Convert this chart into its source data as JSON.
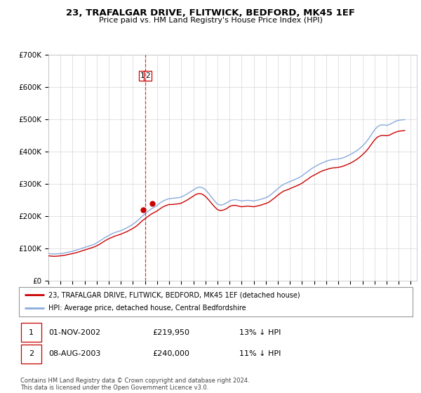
{
  "title": "23, TRAFALGAR DRIVE, FLITWICK, BEDFORD, MK45 1EF",
  "subtitle": "Price paid vs. HM Land Registry's House Price Index (HPI)",
  "legend_line1": "23, TRAFALGAR DRIVE, FLITWICK, BEDFORD, MK45 1EF (detached house)",
  "legend_line2": "HPI: Average price, detached house, Central Bedfordshire",
  "footnote": "Contains HM Land Registry data © Crown copyright and database right 2024.\nThis data is licensed under the Open Government Licence v3.0.",
  "sale1_date": "01-NOV-2002",
  "sale1_price": "£219,950",
  "sale1_hpi": "13% ↓ HPI",
  "sale2_date": "08-AUG-2003",
  "sale2_price": "£240,000",
  "sale2_hpi": "11% ↓ HPI",
  "sale1_year": 2002.83,
  "sale1_value": 219950,
  "sale2_year": 2003.58,
  "sale2_value": 240000,
  "vline_x": 2003.0,
  "property_line_color": "#cc0000",
  "hpi_line_color": "#88aadd",
  "vline_color": "#cc0000",
  "ylim": [
    0,
    700000
  ],
  "xlim_start": 1995,
  "xlim_end": 2025.5,
  "yticks": [
    0,
    100000,
    200000,
    300000,
    400000,
    500000,
    600000,
    700000
  ],
  "xticks": [
    1995,
    1996,
    1997,
    1998,
    1999,
    2000,
    2001,
    2002,
    2003,
    2004,
    2005,
    2006,
    2007,
    2008,
    2009,
    2010,
    2011,
    2012,
    2013,
    2014,
    2015,
    2016,
    2017,
    2018,
    2019,
    2020,
    2021,
    2022,
    2023,
    2024,
    2025
  ],
  "hpi_data_years": [
    1995,
    1995.25,
    1995.5,
    1995.75,
    1996,
    1996.25,
    1996.5,
    1996.75,
    1997,
    1997.25,
    1997.5,
    1997.75,
    1998,
    1998.25,
    1998.5,
    1998.75,
    1999,
    1999.25,
    1999.5,
    1999.75,
    2000,
    2000.25,
    2000.5,
    2000.75,
    2001,
    2001.25,
    2001.5,
    2001.75,
    2002,
    2002.25,
    2002.5,
    2002.75,
    2003,
    2003.25,
    2003.5,
    2003.75,
    2004,
    2004.25,
    2004.5,
    2004.75,
    2005,
    2005.25,
    2005.5,
    2005.75,
    2006,
    2006.25,
    2006.5,
    2006.75,
    2007,
    2007.25,
    2007.5,
    2007.75,
    2008,
    2008.25,
    2008.5,
    2008.75,
    2009,
    2009.25,
    2009.5,
    2009.75,
    2010,
    2010.25,
    2010.5,
    2010.75,
    2011,
    2011.25,
    2011.5,
    2011.75,
    2012,
    2012.25,
    2012.5,
    2012.75,
    2013,
    2013.25,
    2013.5,
    2013.75,
    2014,
    2014.25,
    2014.5,
    2014.75,
    2015,
    2015.25,
    2015.5,
    2015.75,
    2016,
    2016.25,
    2016.5,
    2016.75,
    2017,
    2017.25,
    2017.5,
    2017.75,
    2018,
    2018.25,
    2018.5,
    2018.75,
    2019,
    2019.25,
    2019.5,
    2019.75,
    2020,
    2020.25,
    2020.5,
    2020.75,
    2021,
    2021.25,
    2021.5,
    2021.75,
    2022,
    2022.25,
    2022.5,
    2022.75,
    2023,
    2023.25,
    2023.5,
    2023.75,
    2024,
    2024.5
  ],
  "hpi_data_values": [
    85000,
    84000,
    83500,
    84000,
    85000,
    86000,
    88000,
    90000,
    92000,
    95000,
    98000,
    101000,
    104000,
    107000,
    110000,
    113000,
    118000,
    124000,
    130000,
    136000,
    141000,
    146000,
    150000,
    153000,
    156000,
    160000,
    165000,
    170000,
    176000,
    183000,
    191000,
    200000,
    208000,
    216000,
    223000,
    228000,
    234000,
    242000,
    248000,
    252000,
    255000,
    256000,
    257000,
    258000,
    260000,
    265000,
    270000,
    276000,
    282000,
    288000,
    291000,
    289000,
    283000,
    272000,
    260000,
    248000,
    238000,
    235000,
    237000,
    242000,
    248000,
    251000,
    252000,
    250000,
    248000,
    249000,
    250000,
    249000,
    248000,
    250000,
    252000,
    255000,
    258000,
    263000,
    270000,
    278000,
    286000,
    294000,
    300000,
    304000,
    308000,
    312000,
    316000,
    320000,
    326000,
    333000,
    340000,
    347000,
    353000,
    358000,
    363000,
    367000,
    371000,
    374000,
    376000,
    377000,
    378000,
    380000,
    383000,
    387000,
    392000,
    397000,
    403000,
    410000,
    418000,
    428000,
    440000,
    454000,
    468000,
    478000,
    483000,
    484000,
    482000,
    485000,
    490000,
    495000,
    498000,
    500000
  ],
  "prop_idx_years": [
    1995,
    1995.25,
    1995.5,
    1995.75,
    1996,
    1996.25,
    1996.5,
    1996.75,
    1997,
    1997.25,
    1997.5,
    1997.75,
    1998,
    1998.25,
    1998.5,
    1998.75,
    1999,
    1999.25,
    1999.5,
    1999.75,
    2000,
    2000.25,
    2000.5,
    2000.75,
    2001,
    2001.25,
    2001.5,
    2001.75,
    2002,
    2002.25,
    2002.5,
    2002.75,
    2003,
    2003.25,
    2003.5,
    2003.75,
    2004,
    2004.25,
    2004.5,
    2004.75,
    2005,
    2005.25,
    2005.5,
    2005.75,
    2006,
    2006.25,
    2006.5,
    2006.75,
    2007,
    2007.25,
    2007.5,
    2007.75,
    2008,
    2008.25,
    2008.5,
    2008.75,
    2009,
    2009.25,
    2009.5,
    2009.75,
    2010,
    2010.25,
    2010.5,
    2010.75,
    2011,
    2011.25,
    2011.5,
    2011.75,
    2012,
    2012.25,
    2012.5,
    2012.75,
    2013,
    2013.25,
    2013.5,
    2013.75,
    2014,
    2014.25,
    2014.5,
    2014.75,
    2015,
    2015.25,
    2015.5,
    2015.75,
    2016,
    2016.25,
    2016.5,
    2016.75,
    2017,
    2017.25,
    2017.5,
    2017.75,
    2018,
    2018.25,
    2018.5,
    2018.75,
    2019,
    2019.25,
    2019.5,
    2019.75,
    2020,
    2020.25,
    2020.5,
    2020.75,
    2021,
    2021.25,
    2021.5,
    2021.75,
    2022,
    2022.25,
    2022.5,
    2022.75,
    2023,
    2023.25,
    2023.5,
    2023.75,
    2024,
    2024.5
  ],
  "prop_idx_values": [
    78000,
    77000,
    76500,
    77000,
    78000,
    79000,
    81000,
    83000,
    85000,
    87000,
    90000,
    93000,
    96000,
    99000,
    102000,
    105000,
    109000,
    114000,
    120000,
    126000,
    131000,
    135000,
    139000,
    142000,
    145000,
    149000,
    153000,
    158000,
    163000,
    169000,
    177000,
    186000,
    193000,
    200000,
    207000,
    212000,
    217000,
    224000,
    230000,
    234000,
    237000,
    237000,
    238000,
    239000,
    241000,
    246000,
    251000,
    257000,
    263000,
    269000,
    271000,
    269000,
    262000,
    252000,
    241000,
    230000,
    221000,
    218000,
    220000,
    224000,
    231000,
    234000,
    234000,
    232000,
    230000,
    231000,
    232000,
    231000,
    230000,
    232000,
    234000,
    237000,
    240000,
    244000,
    251000,
    258000,
    266000,
    273000,
    279000,
    282000,
    286000,
    290000,
    294000,
    298000,
    303000,
    310000,
    316000,
    323000,
    328000,
    333000,
    338000,
    342000,
    345000,
    348000,
    350000,
    351000,
    352000,
    354000,
    357000,
    361000,
    365000,
    370000,
    376000,
    383000,
    391000,
    400000,
    411000,
    424000,
    437000,
    446000,
    450000,
    451000,
    450000,
    452000,
    457000,
    461000,
    464000,
    466000
  ]
}
